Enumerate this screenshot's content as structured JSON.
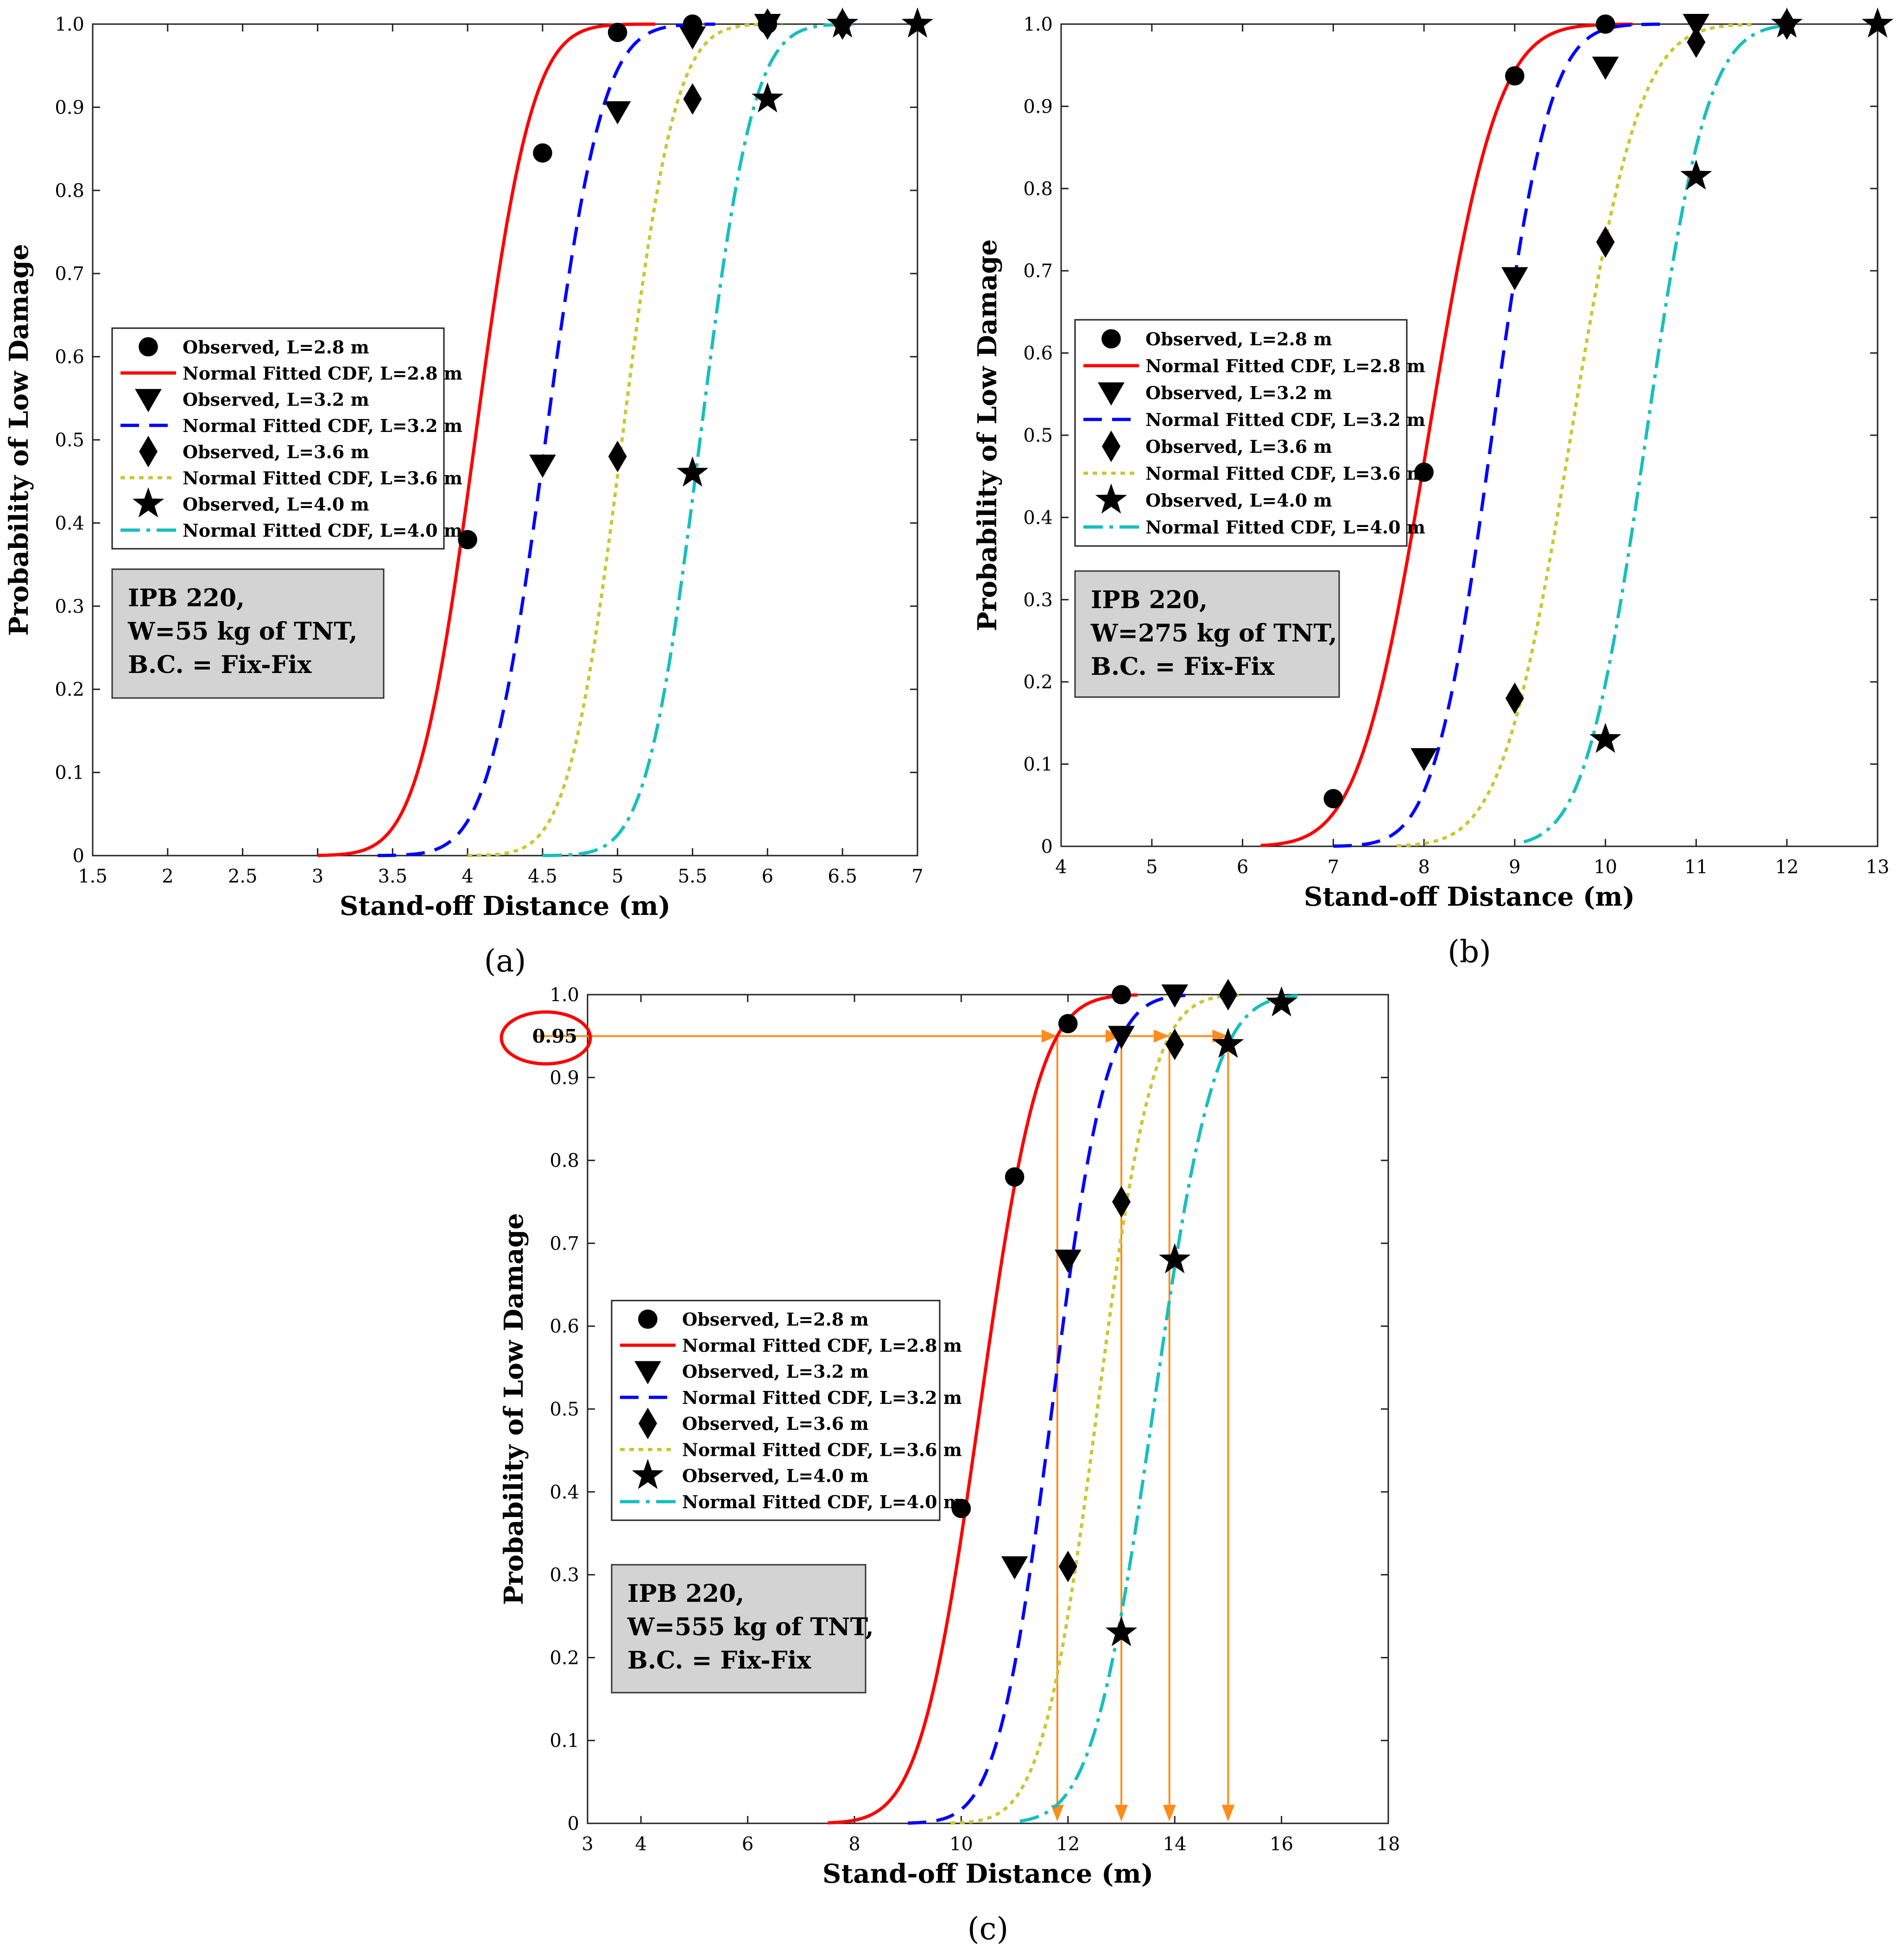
{
  "colors": {
    "L28": "#ff0000",
    "L32": "#0000ff",
    "L36": "#c8c832",
    "L40": "#17bfbf",
    "arrow": "#ff8c1a",
    "highlight": "#ff0000",
    "box": "#d3d3d3"
  },
  "legend_entries": [
    "Observed, L=2.8 m",
    "Normal Fitted CDF, L=2.8 m",
    "Observed, L=3.2 m",
    "Normal Fitted CDF, L=3.2 m",
    "Observed, L=3.6 m",
    "Normal Fitted CDF, L=3.6 m",
    "Observed, L=4.0 m",
    "Normal Fitted CDF, L=4.0 m"
  ],
  "chart_data": [
    {
      "type": "line",
      "panel": "(a)",
      "xlabel": "Stand-off Distance (m)",
      "ylabel": "Probability of Low Damage",
      "xlim": [
        1.5,
        7
      ],
      "ylim": [
        0,
        1
      ],
      "xticks": [
        "1.5",
        "2",
        "2.5",
        "3",
        "3.5",
        "4",
        "4.5",
        "5",
        "5.5",
        "6",
        "6.5",
        "7"
      ],
      "yticks": [
        "0",
        "0.1",
        "0.2",
        "0.3",
        "0.4",
        "0.5",
        "0.6",
        "0.7",
        "0.8",
        "0.9",
        "1.0"
      ],
      "annotation": [
        "IPB 220,",
        "W=55 kg of TNT,",
        "B.C. = Fix-Fix"
      ],
      "series": [
        {
          "name": "L=2.8 m",
          "marker": "circle",
          "observed": [
            [
              4,
              0.38
            ],
            [
              4.5,
              0.845
            ],
            [
              5,
              0.99
            ],
            [
              5.5,
              1
            ],
            [
              6,
              1
            ]
          ],
          "fit": {
            "mu": 4.05,
            "sigma": 0.3,
            "range": [
              3,
              5.25
            ]
          }
        },
        {
          "name": "L=3.2 m",
          "marker": "triangle",
          "observed": [
            [
              4.5,
              0.47
            ],
            [
              5,
              0.895
            ],
            [
              5.5,
              0.985
            ],
            [
              6,
              1
            ]
          ],
          "fit": {
            "mu": 4.52,
            "sigma": 0.3,
            "range": [
              3.4,
              5.65
            ]
          }
        },
        {
          "name": "L=3.6 m",
          "marker": "diamond",
          "observed": [
            [
              5,
              0.48
            ],
            [
              5.5,
              0.91
            ],
            [
              6,
              1
            ],
            [
              6.5,
              1
            ]
          ],
          "fit": {
            "mu": 5.03,
            "sigma": 0.28,
            "range": [
              4,
              6.1
            ]
          }
        },
        {
          "name": "L=4.0 m",
          "marker": "star",
          "observed": [
            [
              5.5,
              0.46
            ],
            [
              6,
              0.91
            ],
            [
              6.5,
              1
            ],
            [
              7,
              1
            ]
          ],
          "fit": {
            "mu": 5.55,
            "sigma": 0.28,
            "range": [
              4.5,
              6.6
            ]
          }
        }
      ]
    },
    {
      "type": "line",
      "panel": "(b)",
      "xlabel": "Stand-off Distance (m)",
      "ylabel": "Probability of Low Damage",
      "xlim": [
        4,
        13
      ],
      "ylim": [
        0,
        1
      ],
      "xticks": [
        "4",
        "5",
        "6",
        "7",
        "8",
        "9",
        "10",
        "11",
        "12",
        "13"
      ],
      "yticks": [
        "0",
        "0.1",
        "0.2",
        "0.3",
        "0.4",
        "0.5",
        "0.6",
        "0.7",
        "0.8",
        "0.9",
        "1.0"
      ],
      "annotation": [
        "IPB 220,",
        "W=275 kg of TNT,",
        "B.C. = Fix-Fix"
      ],
      "series": [
        {
          "name": "L=2.8 m",
          "marker": "circle",
          "observed": [
            [
              7,
              0.058
            ],
            [
              8,
              0.455
            ],
            [
              9,
              0.937
            ],
            [
              10,
              1
            ]
          ],
          "fit": {
            "mu": 8.05,
            "sigma": 0.6,
            "range": [
              6.2,
              10.3
            ]
          }
        },
        {
          "name": "L=3.2 m",
          "marker": "triangle",
          "observed": [
            [
              8,
              0.107
            ],
            [
              9,
              0.692
            ],
            [
              10,
              0.948
            ],
            [
              11,
              1
            ]
          ],
          "fit": {
            "mu": 8.75,
            "sigma": 0.5,
            "range": [
              7,
              10.6
            ]
          }
        },
        {
          "name": "L=3.6 m",
          "marker": "diamond",
          "observed": [
            [
              9,
              0.18
            ],
            [
              10,
              0.735
            ],
            [
              11,
              0.978
            ],
            [
              12,
              1
            ]
          ],
          "fit": {
            "mu": 9.62,
            "sigma": 0.6,
            "range": [
              7.7,
              11.65
            ]
          }
        },
        {
          "name": "L=4.0 m",
          "marker": "star",
          "observed": [
            [
              10,
              0.13
            ],
            [
              11,
              0.815
            ],
            [
              12,
              1
            ],
            [
              13,
              1
            ]
          ],
          "fit": {
            "mu": 10.45,
            "sigma": 0.53,
            "range": [
              9.1,
              12.1
            ]
          }
        }
      ]
    },
    {
      "type": "line",
      "panel": "(c)",
      "xlabel": "Stand-off Distance (m)",
      "ylabel": "Probability of Low Damage",
      "xlim": [
        3,
        18
      ],
      "ylim": [
        0,
        1
      ],
      "xticks": [
        "3",
        "4",
        "6",
        "8",
        "10",
        "12",
        "14",
        "16",
        "18"
      ],
      "xtick_values": [
        3,
        4,
        6,
        8,
        10,
        12,
        14,
        16,
        18
      ],
      "yticks": [
        "0",
        "0.1",
        "0.2",
        "0.3",
        "0.4",
        "0.5",
        "0.6",
        "0.7",
        "0.8",
        "0.9",
        "1.0"
      ],
      "extra_ytick": "0.95",
      "annotation": [
        "IPB 220,",
        "W=555 kg of TNT,",
        "B.C. = Fix-Fix"
      ],
      "threshold": 0.95,
      "threshold_x": [
        11.8,
        13.0,
        13.9,
        15.0
      ],
      "series": [
        {
          "name": "L=2.8 m",
          "marker": "circle",
          "observed": [
            [
              10,
              0.38
            ],
            [
              11,
              0.78
            ],
            [
              12,
              0.965
            ],
            [
              13,
              1
            ]
          ],
          "fit": {
            "mu": 10.35,
            "sigma": 0.88,
            "range": [
              7.5,
              13.3
            ]
          }
        },
        {
          "name": "L=3.2 m",
          "marker": "triangle",
          "observed": [
            [
              11,
              0.31
            ],
            [
              12,
              0.68
            ],
            [
              13,
              0.95
            ],
            [
              14,
              1
            ]
          ],
          "fit": {
            "mu": 11.7,
            "sigma": 0.8,
            "range": [
              9,
              14.2
            ]
          }
        },
        {
          "name": "L=3.6 m",
          "marker": "diamond",
          "observed": [
            [
              12,
              0.31
            ],
            [
              13,
              0.75
            ],
            [
              14,
              0.94
            ],
            [
              15,
              1
            ]
          ],
          "fit": {
            "mu": 12.55,
            "sigma": 0.82,
            "range": [
              9.8,
              15.2
            ]
          }
        },
        {
          "name": "L=4.0 m",
          "marker": "star",
          "observed": [
            [
              13,
              0.23
            ],
            [
              14,
              0.68
            ],
            [
              15,
              0.94
            ],
            [
              16,
              0.99
            ]
          ],
          "fit": {
            "mu": 13.6,
            "sigma": 0.9,
            "range": [
              11.1,
              16.3
            ]
          }
        }
      ]
    }
  ]
}
